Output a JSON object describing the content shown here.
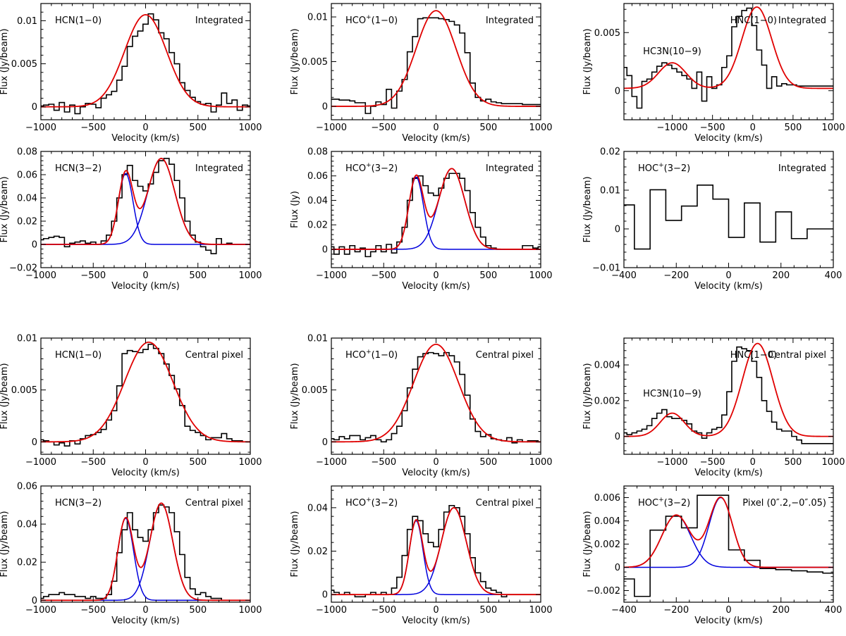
{
  "figure": {
    "xlabel": "Velocity (km/s)",
    "colors": {
      "observed": "#000000",
      "total_fit": "#e00000",
      "component_fit": "#0000dd",
      "frame": "#000000"
    }
  },
  "chart_data": [
    {
      "type": "line",
      "ylabel": "Flux (Jy/beam)",
      "species": "HCN",
      "sup": "",
      "transition": "(1−0)",
      "region": "Integrated",
      "xlim": [
        -1000,
        1000
      ],
      "ylim": [
        -0.0015,
        0.012
      ],
      "xticks": [
        -1000,
        -500,
        0,
        500,
        1000
      ],
      "yticks": [
        0,
        0.005,
        0.01
      ],
      "ytick_labels": [
        "0",
        "0.005",
        "0.01"
      ],
      "hist": {
        "x0": -1025,
        "dx": 50,
        "values": [
          0.0001,
          0.0002,
          0.0003,
          -0.0004,
          0.0005,
          -0.0006,
          0.0002,
          -0.0008,
          0.0,
          0.0004,
          0.0003,
          -0.0001,
          0.001,
          0.0014,
          0.0018,
          0.0031,
          0.0047,
          0.007,
          0.0082,
          0.0088,
          0.0096,
          0.0108,
          0.0101,
          0.0086,
          0.0079,
          0.0063,
          0.005,
          0.0028,
          0.0019,
          0.0011,
          0.0006,
          0.0003,
          0.0004,
          -0.0006,
          0.0002,
          0.0016,
          0.0004,
          0.0008,
          -0.0004,
          0.0002,
          0.0001,
          0.0
        ]
      },
      "fit": {
        "components": [
          [
            0.0107,
            0,
            200
          ]
        ],
        "show_components": false
      }
    },
    {
      "type": "line",
      "ylabel": "Flux (Jy/beam)",
      "species": "HCO",
      "sup": "+",
      "transition": "(1−0)",
      "region": "Integrated",
      "xlim": [
        -1000,
        1000
      ],
      "ylim": [
        -0.0015,
        0.0115
      ],
      "xticks": [
        -1000,
        -500,
        0,
        500,
        1000
      ],
      "yticks": [
        0,
        0.005,
        0.01
      ],
      "ytick_labels": [
        "0",
        "0.005",
        "0.01"
      ],
      "hist": {
        "x0": -1025,
        "dx": 50,
        "values": [
          0.0008,
          0.0008,
          0.0007,
          0.0007,
          0.0006,
          0.0004,
          0.0004,
          -0.0008,
          0.0,
          0.0005,
          0.0002,
          0.0019,
          -0.0002,
          0.0017,
          0.003,
          0.0061,
          0.0078,
          0.0098,
          0.0099,
          0.0099,
          0.0099,
          0.0098,
          0.0097,
          0.0095,
          0.0091,
          0.0082,
          0.006,
          0.0026,
          0.001,
          0.0006,
          0.0008,
          0.0005,
          0.0004,
          0.0003,
          0.0003,
          0.0003,
          0.0003,
          0.0002,
          0.0002,
          0.0002,
          0.0002,
          0.0002
        ]
      },
      "fit": {
        "components": [
          [
            0.0107,
            0,
            190
          ]
        ],
        "show_components": false
      }
    },
    {
      "type": "line",
      "ylabel": "Flux (Jy/beam)",
      "species": "HNC",
      "sup": "",
      "transition": "(1−0)",
      "region": "Integrated",
      "extra_label": "HC3N(10−9)",
      "xlim": [
        -1600,
        1000
      ],
      "ylim": [
        -0.0025,
        0.0075
      ],
      "xticks": [
        -1000,
        -500,
        0,
        500,
        1000
      ],
      "yticks": [
        0,
        0.005
      ],
      "ytick_labels": [
        "0",
        "0.005"
      ],
      "hist": {
        "x0": -1625,
        "dx": 62,
        "values": [
          0.002,
          0.0013,
          -0.0005,
          -0.0015,
          0.0008,
          0.001,
          0.0016,
          0.0021,
          0.0024,
          0.0022,
          0.0019,
          0.0016,
          0.0013,
          0.001,
          0.0002,
          0.0016,
          -0.0009,
          0.0012,
          0.0002,
          0.0005,
          0.002,
          0.003,
          0.0055,
          0.0064,
          0.0069,
          0.0071,
          0.0056,
          0.0035,
          0.0022,
          0.0002,
          0.0012,
          0.0004,
          0.0006,
          0.0005,
          0.0005,
          0.0004,
          0.0004,
          0.0004,
          0.0004,
          0.0004,
          0.0004,
          0.0004,
          0.0004
        ]
      },
      "fit": {
        "components": [
          [
            0.0022,
            -1000,
            170
          ],
          [
            0.007,
            50,
            185
          ]
        ],
        "baseline": 0.0002,
        "show_components": false
      }
    },
    {
      "type": "line",
      "ylabel": "Flux (Jy/beam)",
      "species": "HCN",
      "sup": "",
      "transition": "(3−2)",
      "region": "Integrated",
      "xlim": [
        -1000,
        1000
      ],
      "ylim": [
        -0.02,
        0.08
      ],
      "xticks": [
        -1000,
        -500,
        0,
        500,
        1000
      ],
      "yticks": [
        -0.02,
        0,
        0.02,
        0.04,
        0.06,
        0.08
      ],
      "ytick_labels": [
        "−0.02",
        "0",
        "0.02",
        "0.04",
        "0.06",
        "0.08"
      ],
      "hist": {
        "x0": -1025,
        "dx": 50,
        "values": [
          0.004,
          0.005,
          0.006,
          0.007,
          0.006,
          -0.002,
          0.001,
          0.002,
          0.003,
          0.001,
          0.002,
          0.0,
          0.003,
          0.008,
          0.02,
          0.04,
          0.06,
          0.068,
          0.055,
          0.05,
          0.046,
          0.052,
          0.062,
          0.072,
          0.074,
          0.069,
          0.055,
          0.04,
          0.02,
          0.008,
          0.002,
          -0.002,
          -0.005,
          -0.008,
          0.005,
          0.0,
          0.001,
          0.0,
          0.0,
          0.0,
          0.0,
          0.0
        ]
      },
      "fit": {
        "components": [
          [
            0.061,
            -190,
            70
          ],
          [
            0.074,
            150,
            130
          ]
        ],
        "show_components": true
      }
    },
    {
      "type": "line",
      "ylabel": "Flux (Jy)",
      "species": "HCO",
      "sup": "+",
      "transition": "(3−2)",
      "region": "Integrated",
      "xlim": [
        -1000,
        1000
      ],
      "ylim": [
        -0.015,
        0.08
      ],
      "xticks": [
        -1000,
        -500,
        0,
        500,
        1000
      ],
      "yticks": [
        0,
        0.02,
        0.04,
        0.06,
        0.08
      ],
      "ytick_labels": [
        "0",
        "0.02",
        "0.04",
        "0.06",
        "0.08"
      ],
      "hist": {
        "x0": -1025,
        "dx": 50,
        "values": [
          0.002,
          -0.004,
          0.002,
          -0.004,
          0.003,
          -0.002,
          0.001,
          -0.006,
          -0.002,
          0.003,
          -0.002,
          0.004,
          -0.003,
          0.006,
          0.018,
          0.04,
          0.058,
          0.06,
          0.052,
          0.046,
          0.044,
          0.05,
          0.058,
          0.062,
          0.062,
          0.058,
          0.048,
          0.03,
          0.018,
          0.01,
          0.003,
          0.001,
          0.0,
          0.0,
          0.0,
          0.0,
          0.0,
          0.003,
          0.003,
          0.001,
          0.002,
          0.003
        ]
      },
      "fit": {
        "components": [
          [
            0.059,
            -190,
            70
          ],
          [
            0.066,
            150,
            125
          ]
        ],
        "show_components": true
      }
    },
    {
      "type": "line",
      "ylabel": "Flux (Jy/beam)",
      "species": "HOC",
      "sup": "+",
      "transition": "(3−2)",
      "region": "Integrated",
      "xlim": [
        -400,
        400
      ],
      "ylim": [
        -0.01,
        0.02
      ],
      "xticks": [
        -400,
        -200,
        0,
        200,
        400
      ],
      "yticks": [
        -0.01,
        0,
        0.01,
        0.02
      ],
      "ytick_labels": [
        "−0.01",
        "0",
        "0.01",
        "0.02"
      ],
      "hist": {
        "x0": -420,
        "dx": 60,
        "values": [
          0.0062,
          -0.0052,
          0.0101,
          0.0022,
          0.0059,
          0.0113,
          0.0077,
          -0.0022,
          0.0067,
          -0.0034,
          0.0044,
          -0.0025,
          0.0,
          0.0
        ]
      },
      "fit": null
    },
    {
      "type": "line",
      "ylabel": "Flux (Jy/beam)",
      "species": "HCN",
      "sup": "",
      "transition": "(1−0)",
      "region": "Central pixel",
      "xlim": [
        -1000,
        1000
      ],
      "ylim": [
        -0.0012,
        0.01
      ],
      "xticks": [
        -1000,
        -500,
        0,
        500,
        1000
      ],
      "yticks": [
        0,
        0.005,
        0.01
      ],
      "ytick_labels": [
        "0",
        "0.005",
        "0.01"
      ],
      "hist": {
        "x0": -1025,
        "dx": 50,
        "values": [
          0.0002,
          0.0001,
          0.0,
          -0.0003,
          -0.0001,
          -0.0004,
          0.0001,
          -0.0002,
          0.0003,
          0.0006,
          0.0007,
          0.0009,
          0.0012,
          0.0021,
          0.003,
          0.0054,
          0.0085,
          0.0088,
          0.0087,
          0.0086,
          0.0089,
          0.0094,
          0.009,
          0.0085,
          0.0075,
          0.0064,
          0.0051,
          0.0035,
          0.0015,
          0.0011,
          0.0009,
          0.0006,
          0.0002,
          0.0004,
          0.0004,
          0.0008,
          0.0003,
          0.0001,
          0.0001,
          0.0,
          0.0,
          0.0
        ]
      },
      "fit": {
        "components": [
          [
            0.0096,
            30,
            230
          ]
        ],
        "show_components": false
      }
    },
    {
      "type": "line",
      "ylabel": "Flux (Jy/beam)",
      "species": "HCO",
      "sup": "+",
      "transition": "(1−0)",
      "region": "Central pixel",
      "xlim": [
        -1000,
        1000
      ],
      "ylim": [
        -0.0012,
        0.01
      ],
      "xticks": [
        -1000,
        -500,
        0,
        500,
        1000
      ],
      "yticks": [
        0,
        0.005,
        0.01
      ],
      "ytick_labels": [
        "0",
        "0.005",
        "0.01"
      ],
      "hist": {
        "x0": -1025,
        "dx": 50,
        "values": [
          0.0003,
          0.0002,
          0.0005,
          0.0003,
          0.0006,
          0.0006,
          0.0002,
          0.0004,
          0.0006,
          0.0002,
          0.0,
          0.0002,
          0.0008,
          0.0015,
          0.003,
          0.0052,
          0.007,
          0.0082,
          0.0085,
          0.0086,
          0.0085,
          0.0083,
          0.0086,
          0.0083,
          0.0077,
          0.0065,
          0.0045,
          0.0022,
          0.001,
          0.0005,
          0.0007,
          0.0003,
          0.0002,
          0.0001,
          0.0004,
          -0.0001,
          0.0002,
          0.0,
          0.0001,
          0.0001,
          0.0,
          0.0
        ]
      },
      "fit": {
        "components": [
          [
            0.0094,
            0,
            215
          ]
        ],
        "show_components": false
      }
    },
    {
      "type": "line",
      "ylabel": "Flux (Jy/beam)",
      "species": "HNC",
      "sup": "",
      "transition": "(1−0)",
      "region": "Central pixel",
      "extra_label": "HC3N(10−9)",
      "xlim": [
        -1600,
        1000
      ],
      "ylim": [
        -0.001,
        0.0055
      ],
      "xticks": [
        -1000,
        -500,
        0,
        500,
        1000
      ],
      "yticks": [
        0,
        0.002,
        0.004
      ],
      "ytick_labels": [
        "0",
        "0.002",
        "0.004"
      ],
      "hist": {
        "x0": -1625,
        "dx": 62,
        "values": [
          0.0002,
          0.0001,
          0.0002,
          0.0003,
          0.0004,
          0.0006,
          0.001,
          0.0013,
          0.0015,
          0.0011,
          0.001,
          0.001,
          0.0009,
          0.0007,
          0.0003,
          0.0002,
          -0.0001,
          0.0002,
          0.0004,
          0.0005,
          0.0012,
          0.0025,
          0.0042,
          0.005,
          0.0049,
          0.0048,
          0.0042,
          0.0033,
          0.002,
          0.0014,
          0.0008,
          0.0004,
          0.0003,
          0.0003,
          0.0,
          -0.0002,
          -0.0004,
          -0.0004,
          -0.0004,
          -0.0004,
          -0.0004,
          -0.0004,
          -0.0004
        ]
      },
      "fit": {
        "components": [
          [
            0.0013,
            -1000,
            150
          ],
          [
            0.0052,
            60,
            190
          ]
        ],
        "show_components": false
      }
    },
    {
      "type": "line",
      "ylabel": "Flux (Jy/beam)",
      "species": "HCN",
      "sup": "",
      "transition": "(3−2)",
      "region": "Central pixel",
      "xlim": [
        -1000,
        1000
      ],
      "ylim": [
        -0.001,
        0.06
      ],
      "xticks": [
        -1000,
        -500,
        0,
        500,
        1000
      ],
      "yticks": [
        0,
        0.02,
        0.04,
        0.06
      ],
      "ytick_labels": [
        "0",
        "0.02",
        "0.04",
        "0.06"
      ],
      "hist": {
        "x0": -1025,
        "dx": 50,
        "values": [
          0.001,
          0.002,
          0.003,
          0.003,
          0.004,
          0.003,
          0.003,
          0.002,
          0.002,
          0.001,
          0.002,
          0.001,
          0.001,
          0.003,
          0.01,
          0.025,
          0.037,
          0.046,
          0.037,
          0.033,
          0.031,
          0.037,
          0.046,
          0.05,
          0.049,
          0.046,
          0.036,
          0.024,
          0.012,
          0.006,
          0.003,
          0.004,
          0.002,
          0.001,
          0.001,
          0.0,
          0.0,
          0.0,
          0.0,
          0.0,
          0.0,
          0.0
        ]
      },
      "fit": {
        "components": [
          [
            0.043,
            -190,
            75
          ],
          [
            0.051,
            150,
            110
          ]
        ],
        "show_components": true
      }
    },
    {
      "type": "line",
      "ylabel": "Flux (Jy/beam)",
      "species": "HCO",
      "sup": "+",
      "transition": "(3−2)",
      "region": "Central pixel",
      "xlim": [
        -1000,
        1000
      ],
      "ylim": [
        -0.0035,
        0.05
      ],
      "xticks": [
        -1000,
        -500,
        0,
        500,
        1000
      ],
      "yticks": [
        0,
        0.02,
        0.04
      ],
      "ytick_labels": [
        "0",
        "0.02",
        "0.04"
      ],
      "hist": {
        "x0": -1025,
        "dx": 50,
        "values": [
          0.002,
          0.001,
          0.0,
          0.001,
          0.0,
          -0.001,
          -0.001,
          0.0,
          0.001,
          0.0,
          0.001,
          0.0,
          0.003,
          0.008,
          0.018,
          0.03,
          0.036,
          0.034,
          0.028,
          0.024,
          0.022,
          0.03,
          0.038,
          0.041,
          0.04,
          0.036,
          0.028,
          0.017,
          0.01,
          0.006,
          0.003,
          0.002,
          0.001,
          -0.001,
          0.0,
          0.0,
          0.0,
          0.0,
          0.0,
          0.0,
          0.0,
          0.0
        ]
      },
      "fit": {
        "components": [
          [
            0.034,
            -190,
            65
          ],
          [
            0.04,
            170,
            120
          ]
        ],
        "show_components": true
      }
    },
    {
      "type": "line",
      "ylabel": "Flux (Jy/beam)",
      "species": "HOC",
      "sup": "+",
      "transition": "(3−2)",
      "region": "Pixel (0″.2,−0″.05)",
      "xlim": [
        -400,
        400
      ],
      "ylim": [
        -0.003,
        0.007
      ],
      "xticks": [
        -400,
        -200,
        0,
        200,
        400
      ],
      "yticks": [
        -0.002,
        0,
        0.002,
        0.004,
        0.006
      ],
      "ytick_labels": [
        "−0.002",
        "0",
        "0.002",
        "0.004",
        "0.006"
      ],
      "hist": {
        "x0": -420,
        "dx": 60,
        "values": [
          -0.001,
          -0.0025,
          0.0032,
          0.0044,
          0.0034,
          0.0062,
          0.0062,
          0.0015,
          0.0006,
          -0.0001,
          -0.0002,
          -0.0003,
          -0.0004,
          -0.0005
        ]
      },
      "fit": {
        "components": [
          [
            0.0045,
            -200,
            55
          ],
          [
            0.006,
            -30,
            45
          ]
        ],
        "show_components": true
      }
    }
  ]
}
